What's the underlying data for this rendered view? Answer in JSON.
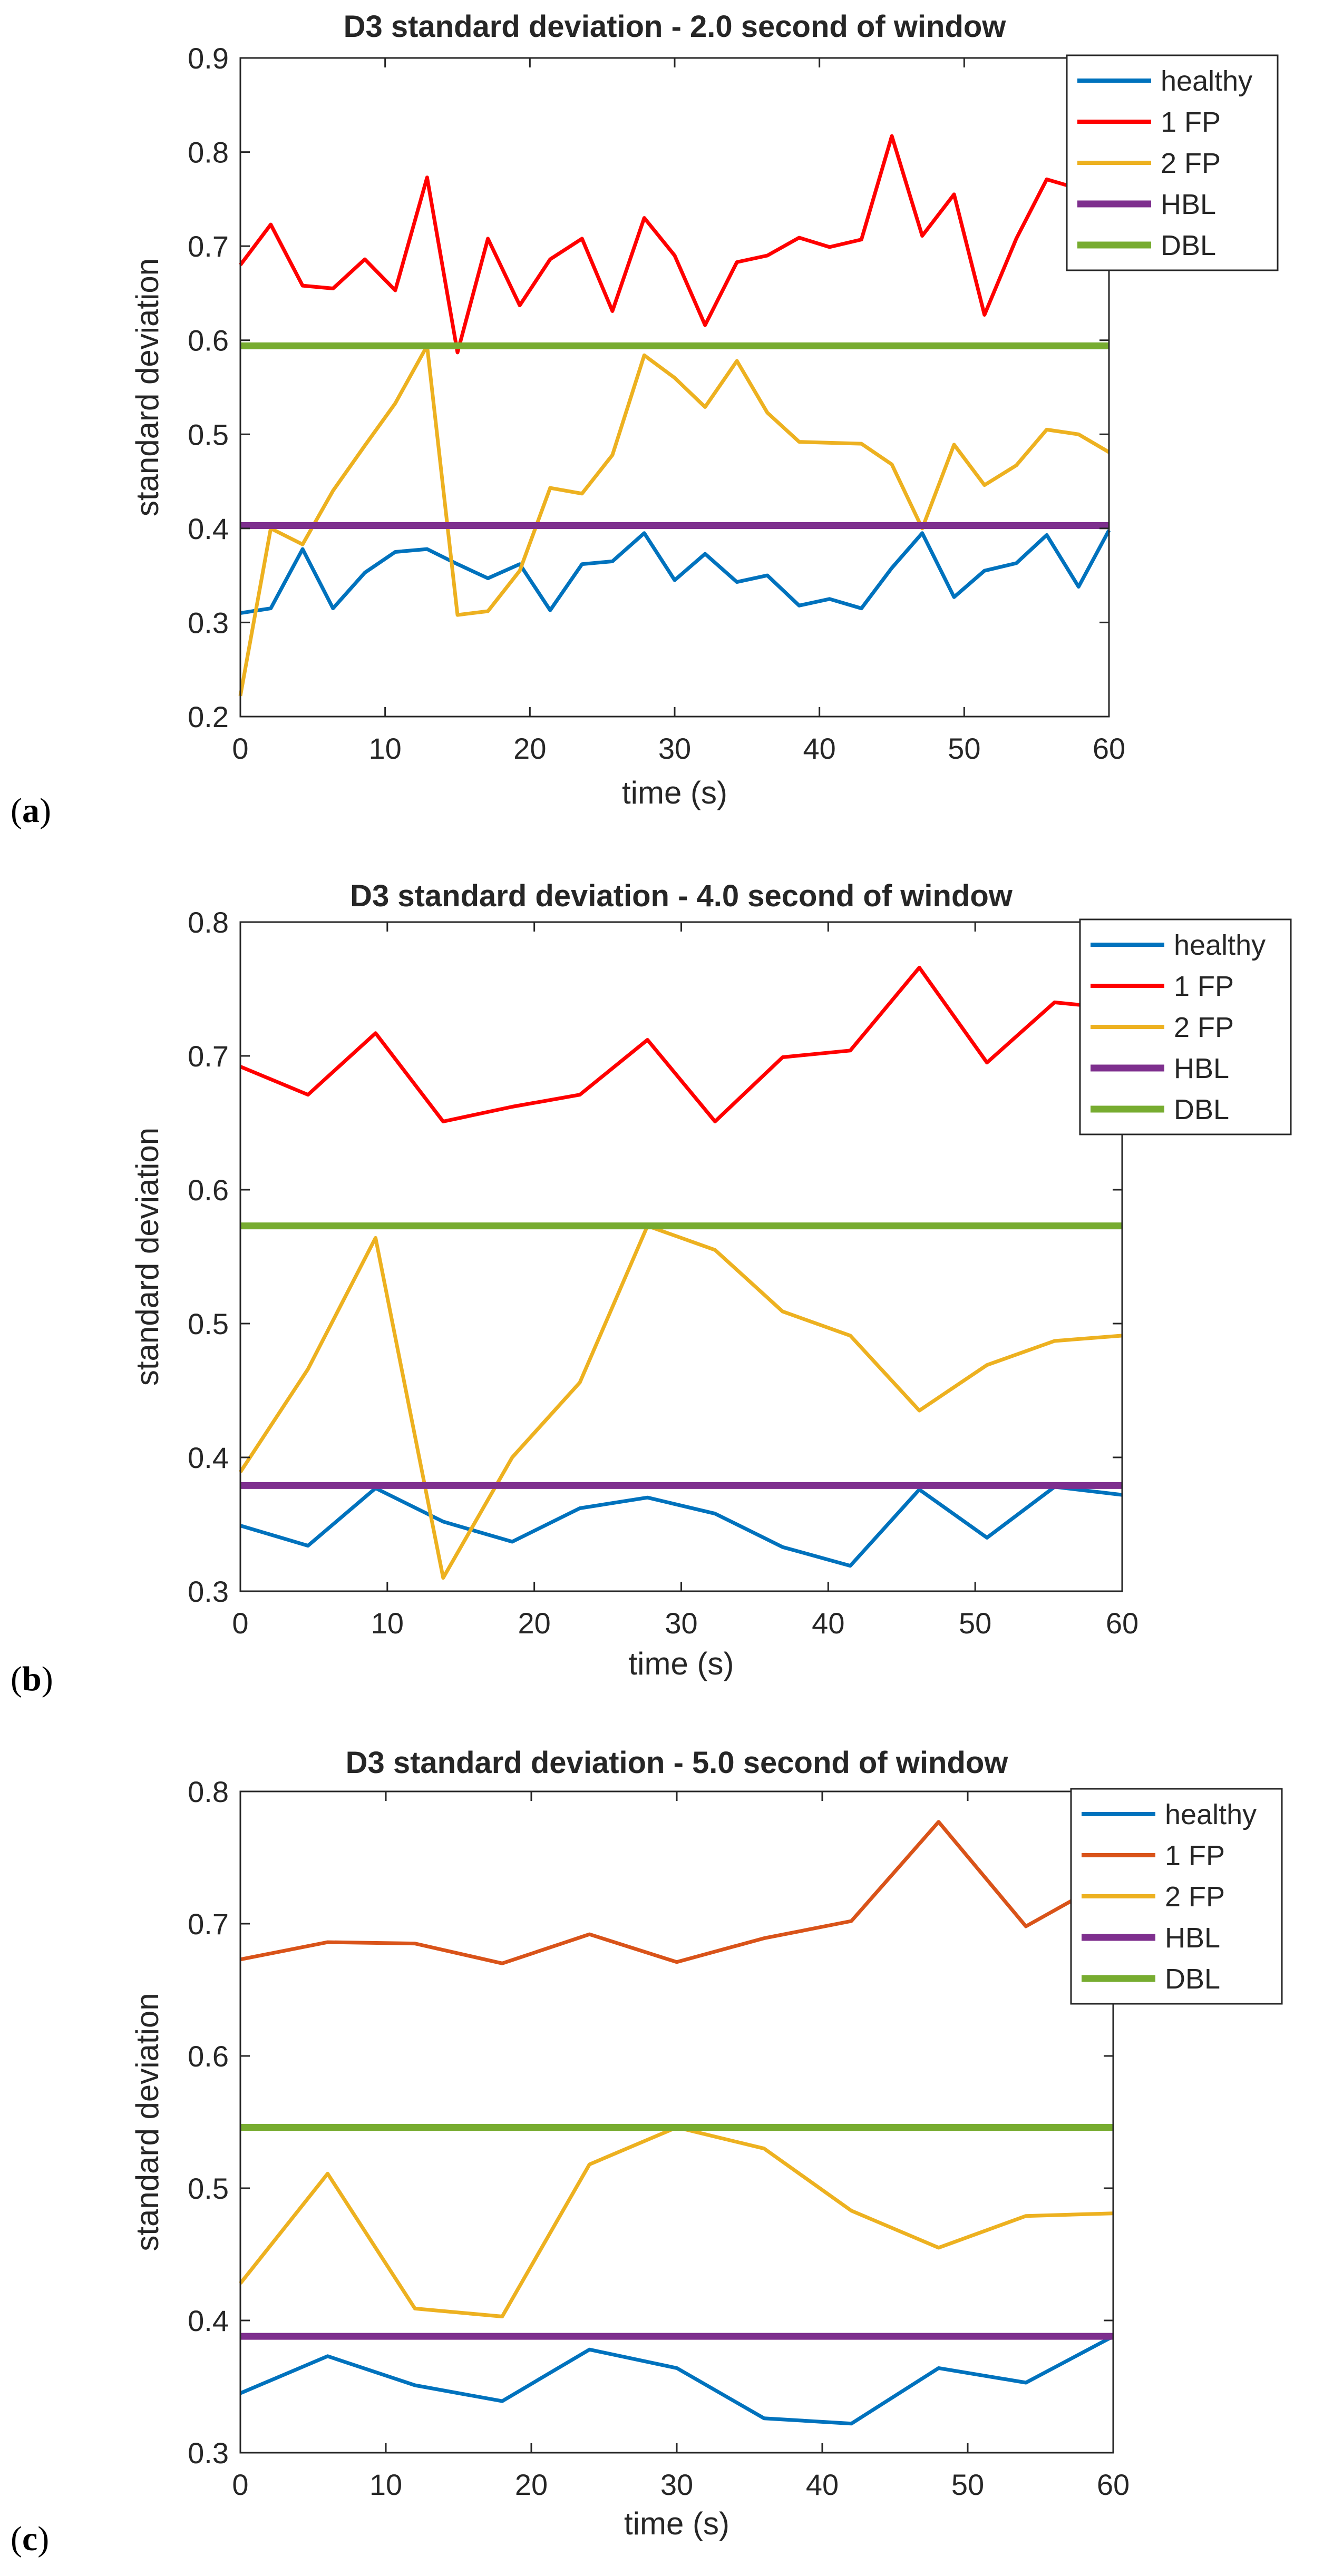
{
  "chart_data": [
    {
      "type": "line",
      "panel_label": "(a)",
      "title": "D3 standard deviation - 2.0 second of window",
      "xlabel": "time (s)",
      "ylabel": "standard deviation",
      "xlim": [
        0,
        60
      ],
      "ylim": [
        0.2,
        0.9
      ],
      "xticks": [
        "0",
        "10",
        "20",
        "30",
        "40",
        "50",
        "60"
      ],
      "yticks": [
        "0.2",
        "0.3",
        "0.4",
        "0.5",
        "0.6",
        "0.7",
        "0.8",
        "0.9"
      ],
      "xtick_values": [
        0,
        10,
        20,
        30,
        40,
        50,
        60
      ],
      "ytick_values": [
        0.2,
        0.3,
        0.4,
        0.5,
        0.6,
        0.7,
        0.8,
        0.9
      ],
      "grid": false,
      "legend_position": "top-right",
      "x": [
        0,
        2.1,
        4.3,
        6.4,
        8.6,
        10.7,
        12.9,
        15.0,
        17.1,
        19.3,
        21.4,
        23.6,
        25.7,
        27.9,
        30.0,
        32.1,
        34.3,
        36.4,
        38.6,
        40.7,
        42.9,
        45.0,
        47.1,
        49.3,
        51.4,
        53.6,
        55.7,
        57.9,
        60.0
      ],
      "series": [
        {
          "name": "healthy",
          "color": "#0072BD",
          "values": [
            0.31,
            0.315,
            0.378,
            0.315,
            0.353,
            0.375,
            0.378,
            0.362,
            0.347,
            0.362,
            0.313,
            0.362,
            0.365,
            0.395,
            0.345,
            0.373,
            0.343,
            0.35,
            0.318,
            0.325,
            0.315,
            0.358,
            0.395,
            0.327,
            0.355,
            0.363,
            0.393,
            0.338,
            0.398
          ]
        },
        {
          "name": "1 FP",
          "color": "#FF0000",
          "values": [
            0.68,
            0.723,
            0.658,
            0.655,
            0.686,
            0.653,
            0.773,
            0.587,
            0.708,
            0.637,
            0.686,
            0.708,
            0.631,
            0.73,
            0.69,
            0.616,
            0.683,
            0.69,
            0.709,
            0.699,
            0.707,
            0.817,
            0.711,
            0.755,
            0.627,
            0.708,
            0.771,
            0.761,
            0.707
          ]
        },
        {
          "name": "2 FP",
          "color": "#EDB120",
          "values": [
            0.222,
            0.4,
            0.383,
            0.44,
            0.488,
            0.533,
            0.594,
            0.308,
            0.312,
            0.355,
            0.443,
            0.437,
            0.478,
            0.584,
            0.56,
            0.529,
            0.578,
            0.523,
            0.492,
            0.491,
            0.49,
            0.468,
            0.4,
            0.489,
            0.446,
            0.467,
            0.505,
            0.5,
            0.481
          ]
        },
        {
          "name": "HBL",
          "color": "#7E2F8E",
          "constant": 0.403
        },
        {
          "name": "DBL",
          "color": "#77AC30",
          "constant": 0.594
        }
      ]
    },
    {
      "type": "line",
      "panel_label": "(b)",
      "title": "D3 standard deviation - 4.0 second of window",
      "xlabel": "time (s)",
      "ylabel": "standard deviation",
      "xlim": [
        0,
        60
      ],
      "ylim": [
        0.3,
        0.8
      ],
      "xticks": [
        "0",
        "10",
        "20",
        "30",
        "40",
        "50",
        "60"
      ],
      "yticks": [
        "0.3",
        "0.4",
        "0.5",
        "0.6",
        "0.7",
        "0.8"
      ],
      "xtick_values": [
        0,
        10,
        20,
        30,
        40,
        50,
        60
      ],
      "ytick_values": [
        0.3,
        0.4,
        0.5,
        0.6,
        0.7,
        0.8
      ],
      "grid": false,
      "legend_position": "top-right",
      "x": [
        0,
        4.6,
        9.2,
        13.8,
        18.5,
        23.1,
        27.7,
        32.3,
        36.9,
        41.5,
        46.2,
        50.8,
        55.4,
        60.0
      ],
      "series": [
        {
          "name": "healthy",
          "color": "#0072BD",
          "values": [
            0.349,
            0.334,
            0.377,
            0.352,
            0.337,
            0.362,
            0.37,
            0.358,
            0.333,
            0.319,
            0.376,
            0.34,
            0.378,
            0.372
          ]
        },
        {
          "name": "1 FP",
          "color": "#FF0000",
          "values": [
            0.692,
            0.671,
            0.717,
            0.651,
            0.662,
            0.671,
            0.712,
            0.651,
            0.699,
            0.704,
            0.766,
            0.695,
            0.74,
            0.735
          ]
        },
        {
          "name": "2 FP",
          "color": "#EDB120",
          "values": [
            0.389,
            0.466,
            0.564,
            0.31,
            0.4,
            0.456,
            0.573,
            0.555,
            0.509,
            0.491,
            0.435,
            0.469,
            0.487,
            0.491
          ]
        },
        {
          "name": "HBL",
          "color": "#7E2F8E",
          "constant": 0.379
        },
        {
          "name": "DBL",
          "color": "#77AC30",
          "constant": 0.573
        }
      ]
    },
    {
      "type": "line",
      "panel_label": "(c)",
      "title": "D3 standard deviation - 5.0 second of window",
      "xlabel": "time (s)",
      "ylabel": "standard deviation",
      "xlim": [
        0,
        60
      ],
      "ylim": [
        0.3,
        0.8
      ],
      "xticks": [
        "0",
        "10",
        "20",
        "30",
        "40",
        "50",
        "60"
      ],
      "yticks": [
        "0.3",
        "0.4",
        "0.5",
        "0.6",
        "0.7",
        "0.8"
      ],
      "xtick_values": [
        0,
        10,
        20,
        30,
        40,
        50,
        60
      ],
      "ytick_values": [
        0.3,
        0.4,
        0.5,
        0.6,
        0.7,
        0.8
      ],
      "grid": false,
      "legend_position": "top-right",
      "x": [
        0,
        6,
        12,
        18,
        24,
        30,
        36,
        42,
        48,
        54,
        60
      ],
      "series": [
        {
          "name": "healthy",
          "color": "#0072BD",
          "values": [
            0.345,
            0.373,
            0.351,
            0.339,
            0.378,
            0.364,
            0.326,
            0.322,
            0.364,
            0.353,
            0.388
          ]
        },
        {
          "name": "1 FP",
          "color": "#D95319",
          "values": [
            0.673,
            0.686,
            0.685,
            0.67,
            0.692,
            0.671,
            0.689,
            0.702,
            0.777,
            0.698,
            0.735
          ]
        },
        {
          "name": "2 FP",
          "color": "#EDB120",
          "values": [
            0.428,
            0.511,
            0.409,
            0.403,
            0.518,
            0.546,
            0.53,
            0.483,
            0.455,
            0.479,
            0.481
          ]
        },
        {
          "name": "HBL",
          "color": "#7E2F8E",
          "constant": 0.388
        },
        {
          "name": "DBL",
          "color": "#77AC30",
          "constant": 0.546
        }
      ]
    }
  ]
}
